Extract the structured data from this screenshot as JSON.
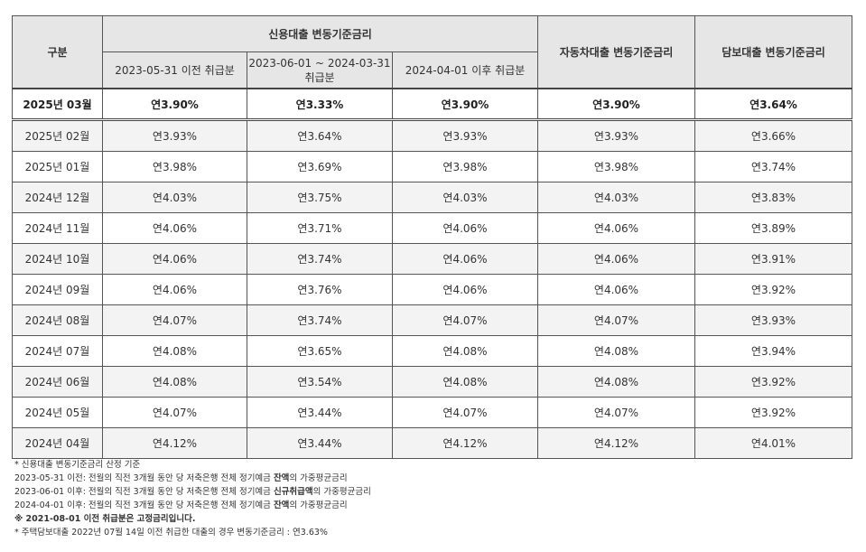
{
  "header": {
    "category": "구분",
    "credit_group": "신용대출 변동기준금리",
    "credit_sub1": "2023-05-31 이전 취급분",
    "credit_sub2": "2023-06-01 ~ 2024-03-31 취급분",
    "credit_sub3": "2024-04-01 이후 취급분",
    "auto": "자동차대출 변동기준금리",
    "mortgage": "담보대출 변동기준금리"
  },
  "rows": [
    {
      "month": "2025년 03월",
      "c1": "연3.90%",
      "c2": "연3.33%",
      "c3": "연3.90%",
      "auto": "연3.90%",
      "mortgage": "연3.64%"
    },
    {
      "month": "2025년 02월",
      "c1": "연3.93%",
      "c2": "연3.64%",
      "c3": "연3.93%",
      "auto": "연3.93%",
      "mortgage": "연3.66%"
    },
    {
      "month": "2025년 01월",
      "c1": "연3.98%",
      "c2": "연3.69%",
      "c3": "연3.98%",
      "auto": "연3.98%",
      "mortgage": "연3.74%"
    },
    {
      "month": "2024년 12월",
      "c1": "연4.03%",
      "c2": "연3.75%",
      "c3": "연4.03%",
      "auto": "연4.03%",
      "mortgage": "연3.83%"
    },
    {
      "month": "2024년 11월",
      "c1": "연4.06%",
      "c2": "연3.71%",
      "c3": "연4.06%",
      "auto": "연4.06%",
      "mortgage": "연3.89%"
    },
    {
      "month": "2024년 10월",
      "c1": "연4.06%",
      "c2": "연3.74%",
      "c3": "연4.06%",
      "auto": "연4.06%",
      "mortgage": "연3.91%"
    },
    {
      "month": "2024년 09월",
      "c1": "연4.06%",
      "c2": "연3.76%",
      "c3": "연4.06%",
      "auto": "연4.06%",
      "mortgage": "연3.92%"
    },
    {
      "month": "2024년 08월",
      "c1": "연4.07%",
      "c2": "연3.74%",
      "c3": "연4.07%",
      "auto": "연4.07%",
      "mortgage": "연3.93%"
    },
    {
      "month": "2024년 07월",
      "c1": "연4.08%",
      "c2": "연3.65%",
      "c3": "연4.08%",
      "auto": "연4.08%",
      "mortgage": "연3.94%"
    },
    {
      "month": "2024년 06월",
      "c1": "연4.08%",
      "c2": "연3.54%",
      "c3": "연4.08%",
      "auto": "연4.08%",
      "mortgage": "연3.92%"
    },
    {
      "month": "2024년 05월",
      "c1": "연4.07%",
      "c2": "연3.44%",
      "c3": "연4.07%",
      "auto": "연4.07%",
      "mortgage": "연3.92%"
    },
    {
      "month": "2024년 04월",
      "c1": "연4.12%",
      "c2": "연3.44%",
      "c3": "연4.12%",
      "auto": "연4.12%",
      "mortgage": "연4.01%"
    }
  ],
  "notes": {
    "n1": "* 신용대출 변동기준금리 산정 기준",
    "n2_pre": "2023-05-31 이전: 전월의 직전 3개월 동안 당 저축은행 전체 정기예금 ",
    "n2_bold": "잔액",
    "n2_post": "의 가중평균금리",
    "n3_pre": "2023-06-01 이후: 전월의 직전 3개월 동안 당 저축은행 전체 정기예금 ",
    "n3_bold": "신규취급액",
    "n3_post": "의 가중평균금리",
    "n4_pre": "2024-04-01 이후: 전월의 직전 3개월 동안 당 저축은행 전체 정기예금 ",
    "n4_bold": "잔액",
    "n4_post": "의 가중평균금리",
    "n5": "※ 2021-08-01 이전 취급분은 고정금리입니다.",
    "n6": "* 주택담보대출 2022년 07월 14일 이전 취급한 대출의 경우 변동기준금리 : 연3.63%"
  }
}
